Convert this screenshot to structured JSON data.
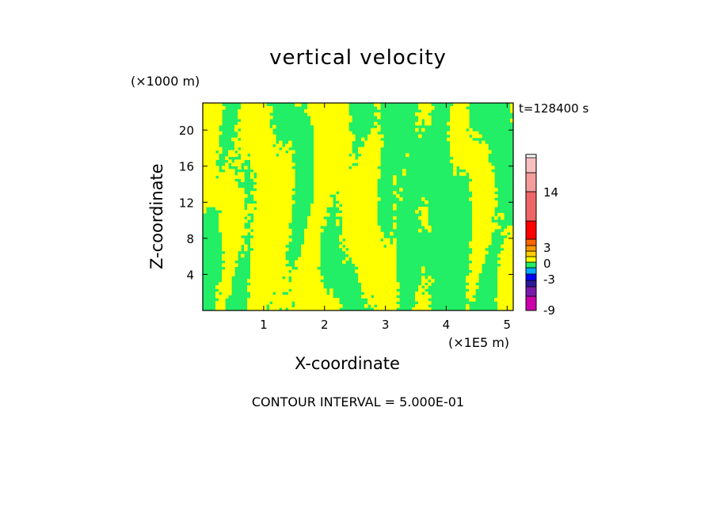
{
  "chart_data": {
    "type": "heatmap",
    "title": "vertical velocity",
    "xlabel": "X-coordinate",
    "ylabel": "Z-coordinate",
    "x_unit": "(×1E5 m)",
    "z_unit": "(×1000 m)",
    "timestamp": "t=128400 s",
    "x_ticks": [
      "1",
      "2",
      "3",
      "4",
      "5"
    ],
    "z_ticks": [
      "4",
      "8",
      "12",
      "16",
      "20"
    ],
    "x_range": [
      0,
      5.1
    ],
    "z_range": [
      0,
      23
    ],
    "field_classes": [
      {
        "name": "green",
        "color": "#22ee66"
      },
      {
        "name": "yellow",
        "color": "#ffff00"
      }
    ],
    "colorbar": {
      "labels": [
        "14",
        "3",
        "0",
        "-3",
        "-9"
      ],
      "bands": [
        {
          "color": "#cc00aa"
        },
        {
          "color": "#7a1aa8"
        },
        {
          "color": "#2a1a9a"
        },
        {
          "color": "#0000ff"
        },
        {
          "color": "#00aaff"
        },
        {
          "color": "#22ee66"
        },
        {
          "color": "#ffff00"
        },
        {
          "color": "#ffcc00"
        },
        {
          "color": "#ff9900"
        },
        {
          "color": "#ff6600"
        },
        {
          "color": "#ff0000"
        },
        {
          "color": "#ee6666"
        },
        {
          "color": "#f49c9c"
        },
        {
          "color": "#f8c0c0"
        }
      ]
    },
    "contour_interval": "CONTOUR INTERVAL = 5.000E-01"
  }
}
